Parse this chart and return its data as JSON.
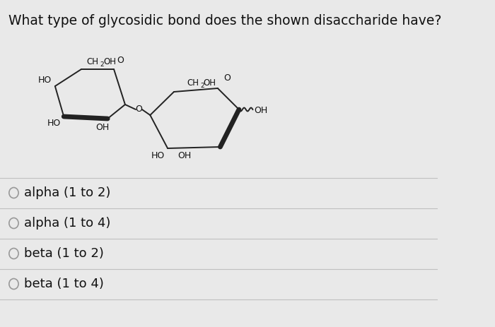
{
  "title": "What type of glycosidic bond does the shown disaccharide have?",
  "title_fontsize": 13.5,
  "bg_color": "#e9e9e9",
  "options": [
    "alpha (1 to 2)",
    "alpha (1 to 4)",
    "beta (1 to 2)",
    "beta (1 to 4)"
  ],
  "option_fontsize": 13,
  "radio_color": "#999999",
  "line_color": "#c0c0c0",
  "structure_color": "#222222",
  "label_color": "#111111",
  "lw": 1.4
}
